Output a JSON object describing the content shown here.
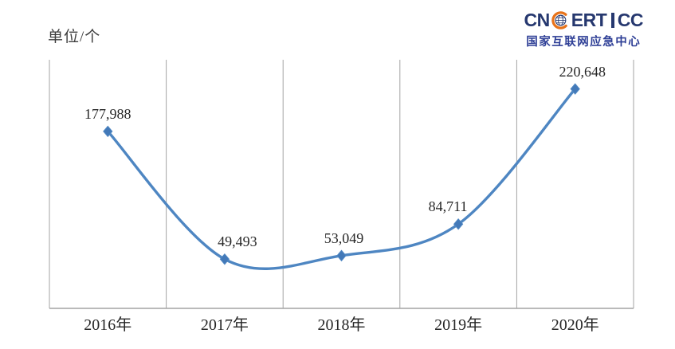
{
  "unit_label": "单位/个",
  "logo": {
    "brand_prefix": "CN",
    "brand_mid": "ERT",
    "brand_suffix": "CC",
    "subtitle": "国家互联网应急中心",
    "colors": {
      "navy": "#26386f",
      "subtitle_blue": "#2e3f96",
      "orange": "#e8731a"
    }
  },
  "chart_data": {
    "type": "line",
    "title": "",
    "xlabel": "",
    "ylabel": "单位/个",
    "categories": [
      "2016年",
      "2017年",
      "2018年",
      "2019年",
      "2020年"
    ],
    "values": [
      177988,
      49493,
      53049,
      84711,
      220648
    ],
    "point_labels": [
      "177,988",
      "49,493",
      "53,049",
      "84,711",
      "220,648"
    ],
    "ylim": [
      0,
      250000
    ],
    "grid": "vertical-column-separators-only",
    "legend": "none",
    "smooth": true,
    "marker": "diamond",
    "line_color": "#4e86c2",
    "marker_color": "#4379b8",
    "axis_color": "#a3a3a3",
    "label_color": "#262626"
  }
}
